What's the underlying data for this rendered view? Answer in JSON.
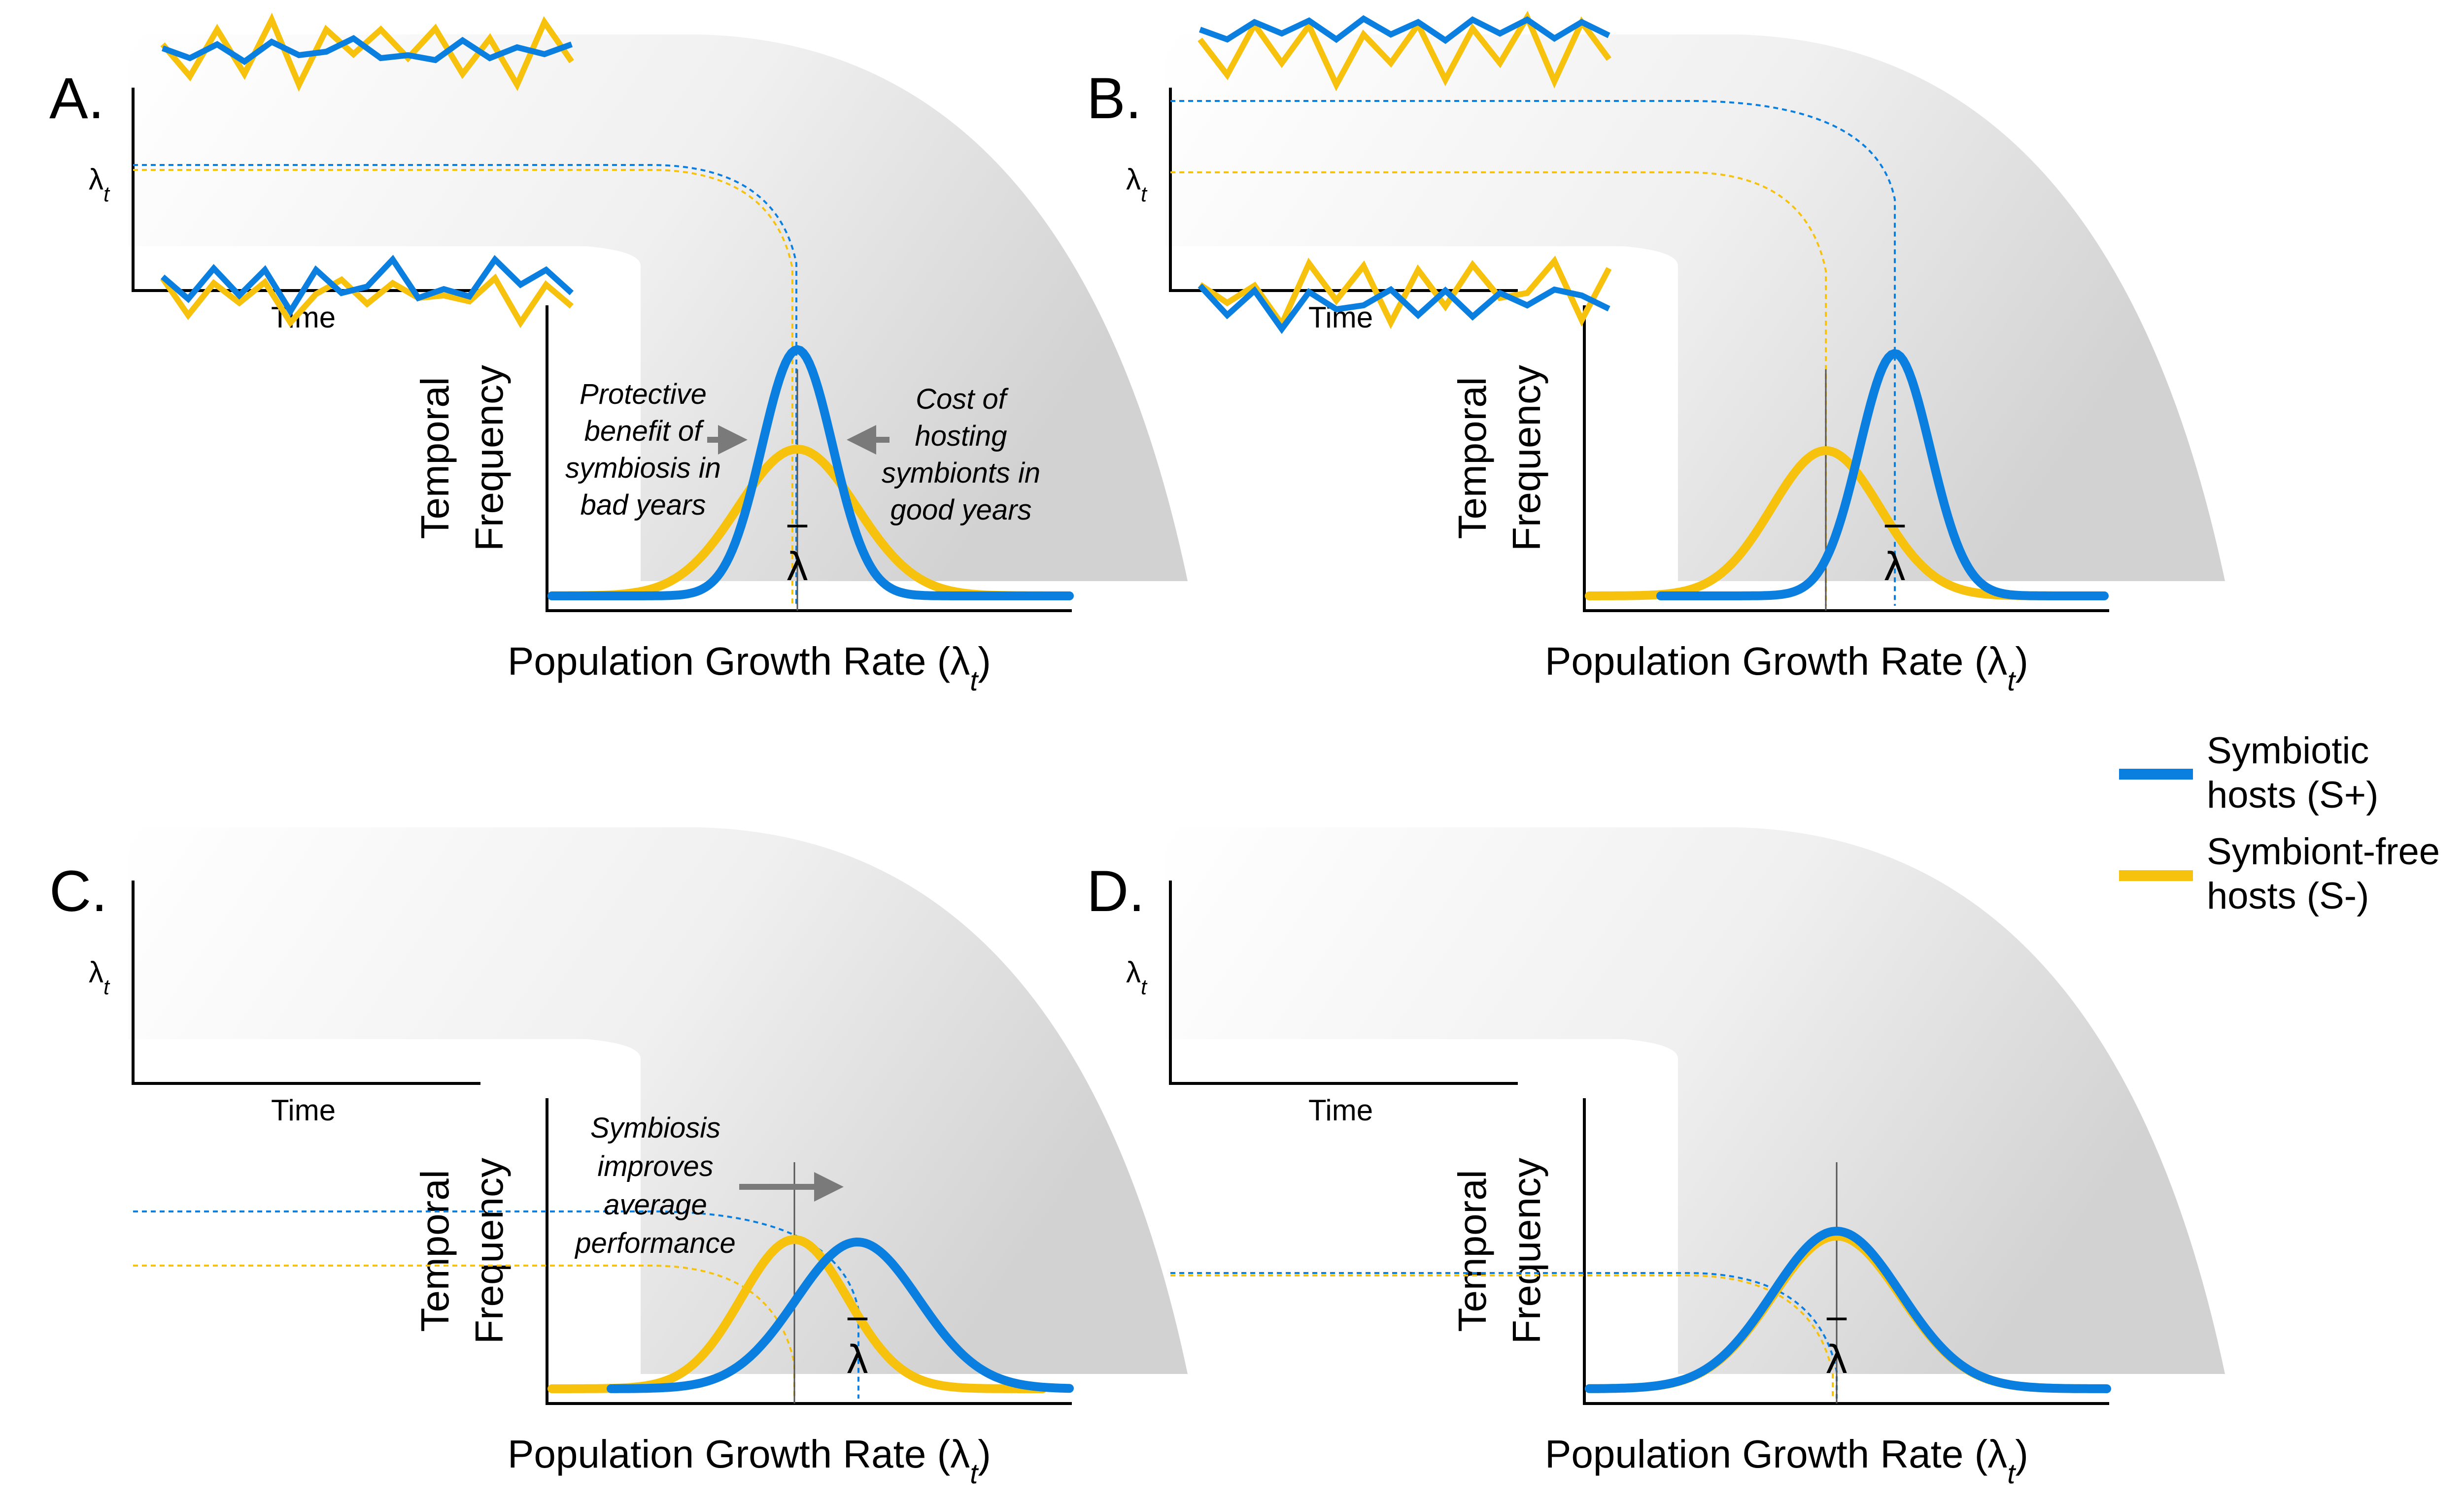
{
  "legend": {
    "s_plus_line1": "Symbiotic",
    "s_plus_line2": "hosts (S+)",
    "s_minus_line1": "Symbiont-free",
    "s_minus_line2": "hosts (S-)",
    "s_plus_color": "#0a7fe0",
    "s_minus_color": "#f6c20e"
  },
  "common": {
    "lambda_t": "λ",
    "lambda_t_sub": "t",
    "time_label": "Time",
    "freq_line1": "Temporal",
    "freq_line2": "Frequency",
    "growth_label": "Population Growth Rate (λ",
    "growth_sub": "t",
    "growth_close": ")",
    "lambda_bar": "λ",
    "lambda_bar_over": "‾"
  },
  "panels": [
    {
      "letter": "A.",
      "annotations": [
        [
          "Protective",
          "benefit of",
          "symbiosis in",
          "bad years"
        ],
        [
          "Cost of",
          "hosting",
          "symbionts in",
          "good years"
        ]
      ]
    },
    {
      "letter": "B.",
      "annotations": []
    },
    {
      "letter": "C.",
      "annotations": [
        [
          "Symbiosis",
          "improves",
          "average",
          "performance"
        ]
      ]
    },
    {
      "letter": "D.",
      "annotations": []
    }
  ]
}
